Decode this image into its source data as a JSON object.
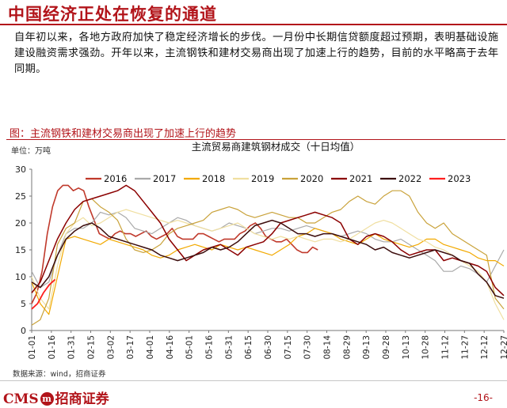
{
  "page": {
    "title": "中国经济正处在恢复的通道",
    "paragraph": "自年初以来，各地方政府加快了稳定经济增长的步伐。一月份中长期信贷额度超过预期，表明基础设施建设融资需求强劲。开年以来，主流钢铁和建材交易商出现了加速上行的趋势，目前的水平略高于去年同期。",
    "figure_title": "图：主流钢铁和建材交易商出现了加速上行的趋势",
    "unit_label": "单位：万吨",
    "source": "数据来源：wind，招商证券",
    "logo_text": "CMS",
    "logo_mark": "m",
    "logo_cn": "招商证券",
    "page_number": "-16-"
  },
  "chart_data": {
    "type": "line",
    "title": "主流贸易商建筑钢材成交（十日均值）",
    "ylim": [
      0,
      30
    ],
    "yticks": [
      0,
      5,
      10,
      15,
      20,
      25,
      30
    ],
    "x_tick_labels": [
      "01-01",
      "01-16",
      "01-31",
      "02-15",
      "03-02",
      "03-17",
      "04-01",
      "04-16",
      "05-01",
      "05-16",
      "05-31",
      "06-15",
      "06-30",
      "07-15",
      "07-30",
      "08-14",
      "08-29",
      "09-13",
      "09-28",
      "10-13",
      "10-28",
      "11-12",
      "11-27",
      "12-12",
      "12-27"
    ],
    "legend_position": "top",
    "series": [
      {
        "name": "2016",
        "color": "#c0392b",
        "width": 1.6,
        "x_range": [
          0,
          220
        ],
        "values": [
          5,
          7,
          11,
          18,
          23,
          26,
          27,
          27,
          26,
          26.5,
          26,
          23,
          20.5,
          18,
          17.5,
          17,
          18,
          18.5,
          18,
          18,
          17.5,
          18,
          18.5,
          17.5,
          17,
          17.5,
          18,
          19,
          17.5,
          17,
          17,
          17,
          18,
          18,
          17.5,
          17,
          16.5,
          17,
          17,
          17,
          18,
          18.5,
          19.5,
          20,
          19,
          17.5,
          17,
          16.5,
          16.5,
          17,
          16,
          15,
          14.5,
          14.5,
          15.5,
          15
        ]
      },
      {
        "name": "2017",
        "color": "#a9a9a9",
        "width": 1.2,
        "x_range": [
          0,
          363
        ],
        "values": [
          11,
          8,
          9,
          14,
          18,
          19,
          19,
          20,
          22,
          21.5,
          22,
          21,
          19,
          18.5,
          18,
          19,
          20,
          21,
          20.5,
          19.5,
          19,
          18.5,
          19,
          20,
          19.5,
          19,
          18,
          18.5,
          19,
          19,
          18.5,
          19,
          19.5,
          19,
          18.5,
          18,
          17.5,
          18,
          18.5,
          18,
          17,
          16.5,
          16.5,
          17,
          16,
          15,
          14,
          13,
          11,
          11,
          12,
          11.5,
          10.5,
          9,
          12,
          15
        ]
      },
      {
        "name": "2018",
        "color": "#f2a900",
        "width": 1.2,
        "x_range": [
          0,
          363
        ],
        "values": [
          9,
          5,
          3,
          10,
          17,
          17.5,
          17,
          16.5,
          16,
          17,
          16.5,
          16,
          15.5,
          15,
          14,
          13.5,
          14,
          15,
          15.5,
          16,
          15.5,
          15,
          16,
          15.5,
          15,
          15.5,
          15,
          14.5,
          14,
          15,
          16,
          17.5,
          18,
          19,
          18.5,
          18,
          17,
          16.5,
          16,
          17,
          18,
          17,
          16.5,
          16,
          15.5,
          16,
          17,
          17,
          16,
          15.5,
          15,
          14.5,
          13.5,
          13,
          13,
          12
        ]
      },
      {
        "name": "2019",
        "color": "#f0dfa0",
        "width": 1.2,
        "x_range": [
          0,
          363
        ],
        "values": [
          10,
          6,
          4,
          12,
          18,
          20,
          21,
          19.5,
          20,
          21,
          22,
          22.5,
          22,
          21.5,
          21,
          20.5,
          20,
          20.5,
          20,
          19.5,
          19,
          18.5,
          19,
          19.5,
          20,
          19,
          18,
          17.5,
          17,
          17.5,
          17,
          17.5,
          17,
          16.5,
          17,
          17,
          16.5,
          17,
          18,
          19,
          20,
          20.5,
          20,
          19,
          18,
          17,
          16.5,
          15.5,
          15,
          14,
          13,
          12,
          11,
          9,
          5,
          2
        ]
      },
      {
        "name": "2020",
        "color": "#c9a23a",
        "width": 1.2,
        "x_range": [
          0,
          363
        ],
        "values": [
          1,
          2,
          6,
          16,
          19,
          20,
          24,
          24.5,
          23,
          22,
          20.5,
          17,
          15,
          14.5,
          15,
          16,
          18,
          19,
          19.5,
          20,
          20.5,
          22,
          22.5,
          23,
          22.5,
          21.5,
          21,
          21.5,
          22,
          21.5,
          21,
          21,
          20,
          20,
          21,
          22,
          22.5,
          24,
          25,
          24,
          23.5,
          25,
          26,
          26,
          25,
          22,
          20,
          19,
          20,
          18,
          17,
          16,
          15,
          14,
          6,
          4
        ]
      },
      {
        "name": "2021",
        "color": "#8b0000",
        "width": 1.5,
        "x_range": [
          0,
          363
        ],
        "values": [
          7,
          9,
          13,
          17,
          20,
          22.5,
          24,
          24.5,
          25,
          25.5,
          26,
          27,
          26,
          24,
          22,
          20,
          17,
          15,
          13,
          14,
          15,
          15.5,
          16,
          15,
          14,
          15.5,
          16,
          16.5,
          18,
          20,
          20.5,
          21,
          21.5,
          22,
          21.5,
          21,
          20,
          17,
          16,
          17.5,
          18,
          17.5,
          16.5,
          15,
          14,
          14.5,
          15,
          15,
          13,
          13.5,
          13,
          12.5,
          12,
          11,
          8,
          6.5
        ]
      },
      {
        "name": "2022",
        "color": "#3c0d0d",
        "width": 1.5,
        "x_range": [
          0,
          363
        ],
        "values": [
          9,
          8,
          10,
          14,
          17,
          18.5,
          19.5,
          20,
          19,
          17.5,
          17,
          16.5,
          16,
          15.5,
          15,
          14,
          13.5,
          13,
          13.5,
          14,
          14.5,
          15.5,
          15,
          15.5,
          16.5,
          18,
          19.5,
          20,
          20.5,
          20,
          19,
          18,
          18,
          17.5,
          18,
          18,
          17.5,
          17,
          16.5,
          16,
          15,
          15.5,
          14.5,
          14,
          13.5,
          14,
          14.5,
          15,
          14.5,
          14,
          13,
          12.5,
          10.5,
          9,
          6.5,
          6
        ]
      },
      {
        "name": "2023",
        "color": "#ff1f1f",
        "width": 1.8,
        "x_range": [
          0,
          18
        ],
        "values": [
          4,
          5,
          7,
          8.5,
          9.5
        ]
      }
    ]
  }
}
